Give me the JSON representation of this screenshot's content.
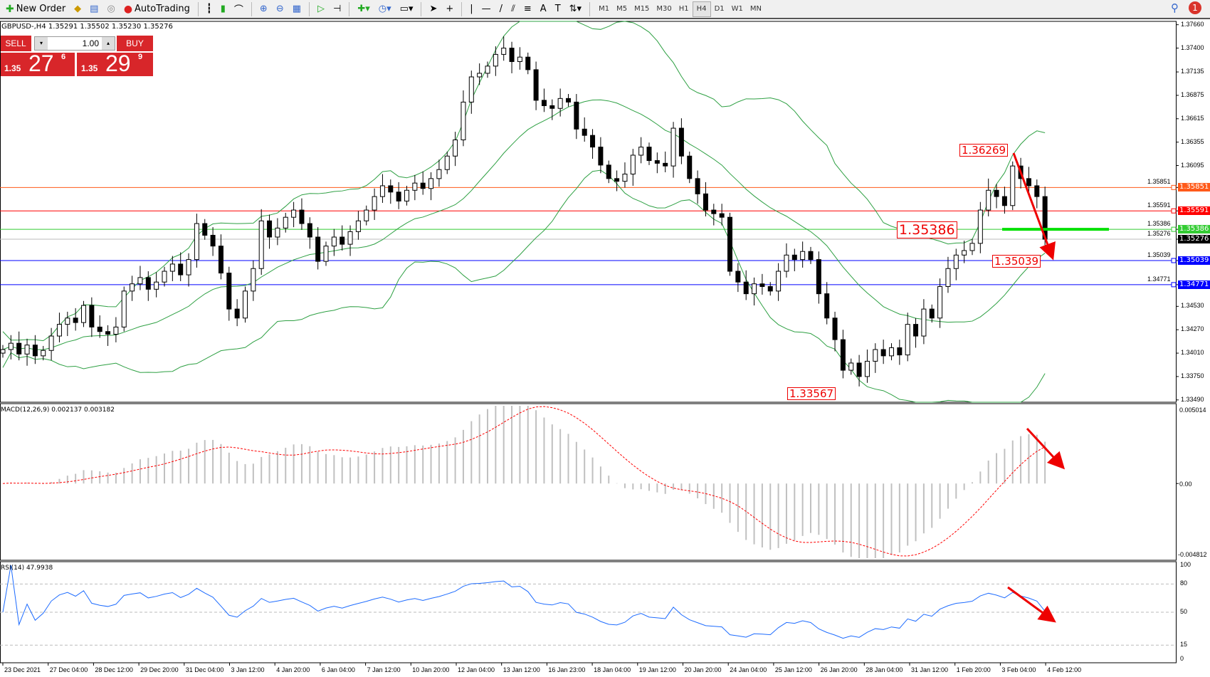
{
  "toolbar": {
    "new_order": "New Order",
    "autotrading": "AutoTrading",
    "timeframes": [
      "M1",
      "M5",
      "M15",
      "M30",
      "H1",
      "H4",
      "D1",
      "W1",
      "MN"
    ],
    "active_timeframe": "H4",
    "notifications": "1"
  },
  "symbol_line": "GBPUSD-,H4  1.35291 1.35502 1.35230 1.35276",
  "trade_panel": {
    "sell": "SELL",
    "buy": "BUY",
    "lot": "1.00",
    "sell_prefix": "1.35",
    "sell_big": "27",
    "sell_sup": "6",
    "buy_prefix": "1.35",
    "buy_big": "29",
    "buy_sup": "9"
  },
  "chart_data": {
    "type": "candlestick",
    "symbol": "GBPUSD-",
    "timeframe": "H4",
    "ylim": [
      1.3349,
      1.3766
    ],
    "price_ticks": [
      "1.37660",
      "1.37400",
      "1.37135",
      "1.36875",
      "1.36615",
      "1.36355",
      "1.36095",
      "1.35851",
      "1.35591",
      "1.35386",
      "1.35276",
      "1.35039",
      "1.34771",
      "1.34530",
      "1.34270",
      "1.34010",
      "1.33750",
      "1.33490"
    ],
    "date_labels": [
      "23 Dec 2021",
      "27 Dec 04:00",
      "28 Dec 12:00",
      "29 Dec 20:00",
      "31 Dec 04:00",
      "3 Jan 12:00",
      "4 Jan 20:00",
      "6 Jan 04:00",
      "7 Jan 12:00",
      "10 Jan 20:00",
      "12 Jan 04:00",
      "13 Jan 12:00",
      "16 Jan 23:00",
      "18 Jan 04:00",
      "19 Jan 12:00",
      "20 Jan 20:00",
      "24 Jan 04:00",
      "25 Jan 12:00",
      "26 Jan 20:00",
      "28 Jan 04:00",
      "31 Jan 12:00",
      "1 Feb 20:00",
      "3 Feb 04:00",
      "4 Feb 12:00"
    ],
    "closes": [
      1.3405,
      1.3412,
      1.34,
      1.341,
      1.3398,
      1.3404,
      1.342,
      1.3433,
      1.344,
      1.3435,
      1.3454,
      1.343,
      1.3425,
      1.3422,
      1.343,
      1.347,
      1.3478,
      1.3485,
      1.3472,
      1.348,
      1.3492,
      1.35,
      1.3488,
      1.3505,
      1.3545,
      1.3532,
      1.352,
      1.349,
      1.345,
      1.344,
      1.347,
      1.3495,
      1.3548,
      1.353,
      1.354,
      1.3552,
      1.356,
      1.3545,
      1.353,
      1.3503,
      1.352,
      1.353,
      1.3522,
      1.3536,
      1.3548,
      1.356,
      1.3575,
      1.3587,
      1.358,
      1.357,
      1.3582,
      1.359,
      1.3584,
      1.3595,
      1.3605,
      1.362,
      1.3638,
      1.368,
      1.3708,
      1.3712,
      1.372,
      1.3733,
      1.374,
      1.3725,
      1.373,
      1.3716,
      1.3682,
      1.3676,
      1.3673,
      1.3684,
      1.368,
      1.365,
      1.3643,
      1.363,
      1.361,
      1.3595,
      1.3592,
      1.36,
      1.3621,
      1.363,
      1.3615,
      1.3612,
      1.3609,
      1.3651,
      1.362,
      1.3595,
      1.3578,
      1.356,
      1.3556,
      1.3552,
      1.3492,
      1.348,
      1.3467,
      1.3478,
      1.3475,
      1.347,
      1.3492,
      1.351,
      1.3505,
      1.3514,
      1.3505,
      1.3467,
      1.344,
      1.3416,
      1.3382,
      1.339,
      1.3375,
      1.3392,
      1.3405,
      1.3398,
      1.3407,
      1.3399,
      1.3433,
      1.342,
      1.345,
      1.344,
      1.3475,
      1.3495,
      1.351,
      1.3515,
      1.3523,
      1.356,
      1.3582,
      1.3575,
      1.3565,
      1.3609,
      1.3595,
      1.3587,
      1.3575,
      1.35276
    ],
    "indicators": {
      "bollinger": "Bollinger Bands",
      "color": "#2ea043"
    },
    "hlines": [
      {
        "price": 1.35851,
        "label": "1.35851",
        "color": "#ff5a1a"
      },
      {
        "price": 1.35591,
        "label": "1.35591",
        "color": "#ff0000"
      },
      {
        "price": 1.35386,
        "label": "1.35386",
        "color": "#33cc33"
      },
      {
        "price": 1.35276,
        "label": "1.35276",
        "color": "#000000",
        "line": "#bbbbbb"
      },
      {
        "price": 1.35039,
        "label": "1.35039",
        "color": "#0000ff"
      },
      {
        "price": 1.34771,
        "label": "1.34771",
        "color": "#0000ff"
      }
    ],
    "annotations": [
      "1.36269",
      "1.35386",
      "1.35039",
      "1.33567"
    ],
    "green_level": 1.35386
  },
  "macd": {
    "title": "MACD(12,26,9) 0.002137 0.003182",
    "max": "0.005014",
    "zero": "0.00",
    "min": "-0.004812",
    "hist_color": "#c0c0c0",
    "signal_color": "#ff0000"
  },
  "rsi": {
    "title": "RSI(14) 47.9938",
    "levels": [
      "100",
      "80",
      "50",
      "15",
      "0"
    ],
    "color": "#1e6cff"
  }
}
